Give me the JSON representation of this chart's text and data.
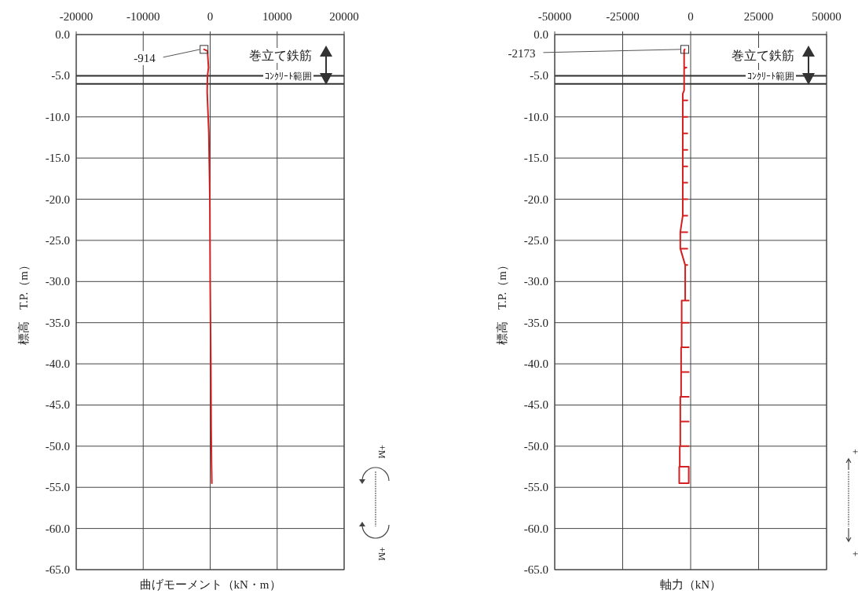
{
  "chart_data": [
    {
      "type": "line",
      "xlabel": "曲げモーメント（kN・m）",
      "ylabel": "標高　T.P.（m）",
      "xlim": [
        -20000,
        20000
      ],
      "xticks": [
        -20000,
        -10000,
        0,
        10000,
        20000
      ],
      "ylim": [
        -65,
        0
      ],
      "yticks": [
        {
          "value": 0,
          "label": "0.0"
        },
        {
          "value": -5,
          "label": "-5.0"
        },
        {
          "value": -10,
          "label": "-10.0"
        },
        {
          "value": -15,
          "label": "-15.0"
        },
        {
          "value": -20,
          "label": "-20.0"
        },
        {
          "value": -25,
          "label": "-25.0"
        },
        {
          "value": -30,
          "label": "-30.0"
        },
        {
          "value": -35,
          "label": "-35.0"
        },
        {
          "value": -40,
          "label": "-40.0"
        },
        {
          "value": -45,
          "label": "-45.0"
        },
        {
          "value": -50,
          "label": "-50.0"
        },
        {
          "value": -55,
          "label": "-55.0"
        },
        {
          "value": -60,
          "label": "-60.0"
        },
        {
          "value": -65,
          "label": "-65.0"
        }
      ],
      "grid": true,
      "ref_lines": [
        {
          "axis": "y",
          "value": -5,
          "color": "#333333"
        },
        {
          "axis": "y",
          "value": -6,
          "color": "#333333"
        }
      ],
      "series": [
        {
          "color": "#d42020",
          "x": [
            -914,
            -400,
            -250,
            -400,
            -450,
            -350,
            -200,
            -50,
            0,
            100,
            150,
            200,
            250
          ],
          "values": [
            -1.8,
            -2.0,
            -4.0,
            -5.0,
            -7.0,
            -9.0,
            -12.0,
            -20.0,
            -30.0,
            -40.0,
            -48.0,
            -52.0,
            -54.5
          ]
        }
      ],
      "annotations": [
        {
          "text": "-914",
          "x": -914,
          "y": -1.8
        },
        "巻立て鉄筋",
        "ｺﾝｸﾘｰﾄ範囲",
        "+M",
        "+M"
      ]
    },
    {
      "type": "line",
      "xlabel": "軸力（kN）",
      "ylabel": "標高　T.P.（m）",
      "xlim": [
        -50000,
        50000
      ],
      "xticks": [
        -50000,
        -25000,
        0,
        25000,
        50000
      ],
      "ylim": [
        -65,
        0
      ],
      "yticks": [
        {
          "value": 0,
          "label": "0.0"
        },
        {
          "value": -5,
          "label": "-5.0"
        },
        {
          "value": -10,
          "label": "-10.0"
        },
        {
          "value": -15,
          "label": "-15.0"
        },
        {
          "value": -20,
          "label": "-20.0"
        },
        {
          "value": -25,
          "label": "-25.0"
        },
        {
          "value": -30,
          "label": "-30.0"
        },
        {
          "value": -35,
          "label": "-35.0"
        },
        {
          "value": -40,
          "label": "-40.0"
        },
        {
          "value": -45,
          "label": "-45.0"
        },
        {
          "value": -50,
          "label": "-50.0"
        },
        {
          "value": -55,
          "label": "-55.0"
        },
        {
          "value": -60,
          "label": "-60.0"
        },
        {
          "value": -65,
          "label": "-65.0"
        }
      ],
      "grid": true,
      "ref_lines": [
        {
          "axis": "y",
          "value": -5,
          "color": "#333333"
        },
        {
          "axis": "y",
          "value": -6,
          "color": "#333333"
        }
      ],
      "series": [
        {
          "color": "#d42020",
          "x": [
            -2173,
            -2400,
            -2400,
            -1500,
            -2400,
            -2400,
            -2900,
            -2900,
            -1200,
            -2900,
            -2900,
            -1200,
            -2900,
            -2900,
            -1200,
            -2900,
            -2900,
            -1200,
            -2900,
            -2900,
            -1200,
            -2900,
            -2900,
            -1200,
            -2900,
            -2900,
            -1200,
            -2900,
            -2900,
            -1200,
            -2900,
            -3800,
            -1200,
            -3800,
            -3800,
            -1200,
            -3800,
            -2000,
            -1200,
            -2000,
            -2000,
            -700,
            -3300,
            -3300,
            -700,
            -3300,
            -3300,
            -700,
            -3500,
            -3500,
            -700,
            -3500,
            -3500,
            -700,
            -3800,
            -3800,
            -700,
            -3800,
            -3800,
            -700,
            -4000,
            -4000,
            -700,
            -4000,
            -4200,
            -700,
            -700,
            -4200,
            -4200
          ],
          "values": [
            -1.8,
            -1.9,
            -4.0,
            -4.0,
            -4.1,
            -6.8,
            -7.2,
            -8,
            -8,
            -8,
            -10,
            -10,
            -10,
            -12,
            -12,
            -12,
            -14,
            -14,
            -14,
            -16,
            -16,
            -16,
            -18,
            -18,
            -18,
            -20,
            -20,
            -20,
            -22,
            -22,
            -22,
            -24,
            -24,
            -24,
            -26,
            -26,
            -26,
            -28,
            -28,
            -28,
            -32.3,
            -32.3,
            -32.3,
            -35,
            -35,
            -35,
            -38,
            -38,
            -38,
            -41,
            -41,
            -41,
            -44,
            -44,
            -44,
            -47,
            -47,
            -47,
            -50,
            -50,
            -50,
            -52.5,
            -52.5,
            -52.5,
            -52.5,
            -52.5,
            -54.5,
            -54.5,
            -52.5
          ]
        }
      ],
      "annotations": [
        {
          "text": "-2173",
          "x": -2173,
          "y": -1.8
        },
        "巻立て鉄筋",
        "ｺﾝｸﾘｰﾄ範囲",
        "+",
        "+"
      ]
    }
  ]
}
